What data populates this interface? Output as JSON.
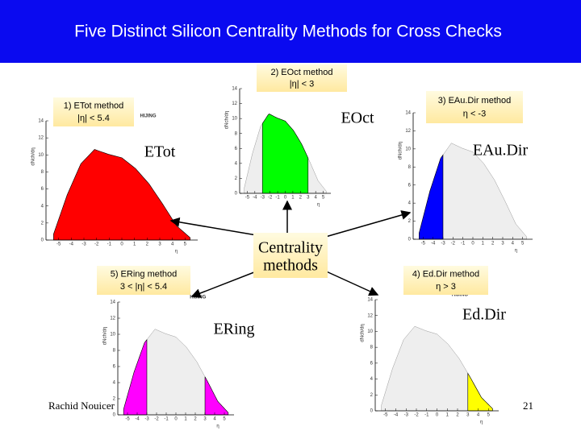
{
  "title": "Five Distinct Silicon Centrality Methods  for Cross Checks",
  "methods": [
    {
      "label": "1) ETot method",
      "condition": "|η| < 5.4",
      "name": "ETot",
      "color": "#ff0000"
    },
    {
      "label": "2) EOct method",
      "condition": "|η| < 3",
      "name": "EOct",
      "color": "#00ff00"
    },
    {
      "label": "3) EAu.Dir method",
      "condition": "η < -3",
      "name": "EAu.Dir",
      "color": "#0000ff"
    },
    {
      "label": "4) Ed.Dir method",
      "condition": "η > 3",
      "name": "Ed.Dir",
      "color": "#ffff00"
    },
    {
      "label": "5) ERing method",
      "condition": "3 < |η| < 5.4",
      "name": "ERing",
      "color": "#ff00ff"
    }
  ],
  "center": [
    "Centrality",
    "methods"
  ],
  "plot_axes": {
    "xlim": [
      -6,
      6
    ],
    "ylim": [
      0,
      14
    ],
    "xticks": [
      -5,
      -4,
      -3,
      -2,
      -1,
      0,
      1,
      2,
      3,
      4,
      5
    ],
    "yticks": [
      0,
      2,
      4,
      6,
      8,
      10,
      12,
      14
    ],
    "model": "HIJING",
    "ylabel": "dNch/dη",
    "xlabel": "η"
  },
  "footer": {
    "author": "Rachid Nouicer",
    "page": "21"
  }
}
